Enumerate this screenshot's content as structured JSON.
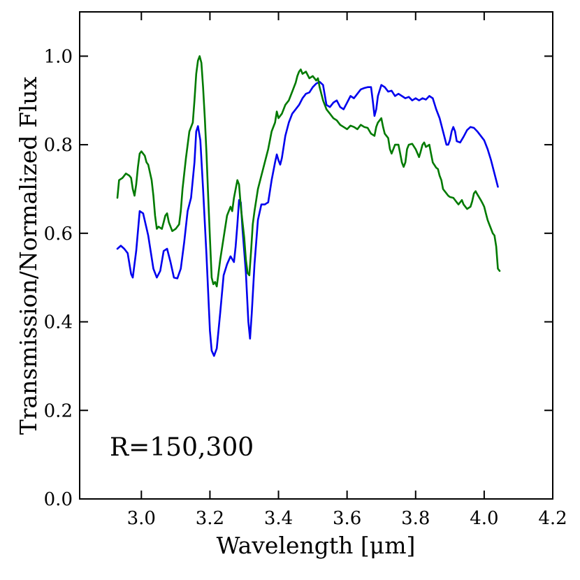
{
  "chart_data": {
    "type": "line",
    "xlabel": "Wavelength [μm]",
    "ylabel": "Transmission/Normalized Flux",
    "xlim": [
      2.82,
      4.2
    ],
    "ylim": [
      0.0,
      1.1
    ],
    "xticks": [
      3.0,
      3.2,
      3.4,
      3.6,
      3.8,
      4.0,
      4.2
    ],
    "xtick_labels": [
      "3.0",
      "3.2",
      "3.4",
      "3.6",
      "3.8",
      "4.0",
      "4.2"
    ],
    "yticks": [
      0.0,
      0.2,
      0.4,
      0.6,
      0.8,
      1.0
    ],
    "ytick_labels": [
      "0.0",
      "0.2",
      "0.4",
      "0.6",
      "0.8",
      "1.0"
    ],
    "annotation": "R=150,300",
    "series": [
      {
        "name": "blue",
        "color": "#0000ee",
        "points": [
          [
            2.93,
            0.565
          ],
          [
            2.94,
            0.572
          ],
          [
            2.95,
            0.565
          ],
          [
            2.96,
            0.555
          ],
          [
            2.97,
            0.508
          ],
          [
            2.975,
            0.5
          ],
          [
            2.985,
            0.56
          ],
          [
            2.995,
            0.65
          ],
          [
            3.005,
            0.645
          ],
          [
            3.02,
            0.595
          ],
          [
            3.035,
            0.52
          ],
          [
            3.045,
            0.5
          ],
          [
            3.055,
            0.515
          ],
          [
            3.065,
            0.56
          ],
          [
            3.075,
            0.565
          ],
          [
            3.085,
            0.535
          ],
          [
            3.095,
            0.5
          ],
          [
            3.105,
            0.498
          ],
          [
            3.115,
            0.52
          ],
          [
            3.125,
            0.58
          ],
          [
            3.135,
            0.65
          ],
          [
            3.145,
            0.68
          ],
          [
            3.155,
            0.76
          ],
          [
            3.16,
            0.83
          ],
          [
            3.165,
            0.842
          ],
          [
            3.172,
            0.81
          ],
          [
            3.18,
            0.7
          ],
          [
            3.19,
            0.55
          ],
          [
            3.2,
            0.38
          ],
          [
            3.205,
            0.335
          ],
          [
            3.212,
            0.323
          ],
          [
            3.22,
            0.34
          ],
          [
            3.23,
            0.42
          ],
          [
            3.24,
            0.505
          ],
          [
            3.25,
            0.53
          ],
          [
            3.26,
            0.548
          ],
          [
            3.27,
            0.535
          ],
          [
            3.275,
            0.57
          ],
          [
            3.28,
            0.62
          ],
          [
            3.285,
            0.675
          ],
          [
            3.29,
            0.67
          ],
          [
            3.295,
            0.61
          ],
          [
            3.305,
            0.51
          ],
          [
            3.312,
            0.4
          ],
          [
            3.317,
            0.362
          ],
          [
            3.322,
            0.42
          ],
          [
            3.33,
            0.53
          ],
          [
            3.34,
            0.63
          ],
          [
            3.35,
            0.665
          ],
          [
            3.36,
            0.665
          ],
          [
            3.37,
            0.67
          ],
          [
            3.38,
            0.72
          ],
          [
            3.39,
            0.76
          ],
          [
            3.395,
            0.778
          ],
          [
            3.4,
            0.765
          ],
          [
            3.405,
            0.755
          ],
          [
            3.41,
            0.77
          ],
          [
            3.42,
            0.82
          ],
          [
            3.43,
            0.85
          ],
          [
            3.44,
            0.87
          ],
          [
            3.45,
            0.88
          ],
          [
            3.46,
            0.89
          ],
          [
            3.47,
            0.905
          ],
          [
            3.48,
            0.915
          ],
          [
            3.49,
            0.918
          ],
          [
            3.5,
            0.93
          ],
          [
            3.51,
            0.938
          ],
          [
            3.52,
            0.942
          ],
          [
            3.53,
            0.935
          ],
          [
            3.54,
            0.89
          ],
          [
            3.55,
            0.885
          ],
          [
            3.56,
            0.895
          ],
          [
            3.57,
            0.9
          ],
          [
            3.58,
            0.885
          ],
          [
            3.59,
            0.88
          ],
          [
            3.6,
            0.895
          ],
          [
            3.61,
            0.91
          ],
          [
            3.62,
            0.905
          ],
          [
            3.63,
            0.915
          ],
          [
            3.64,
            0.925
          ],
          [
            3.65,
            0.928
          ],
          [
            3.66,
            0.93
          ],
          [
            3.67,
            0.93
          ],
          [
            3.675,
            0.9
          ],
          [
            3.68,
            0.865
          ],
          [
            3.685,
            0.88
          ],
          [
            3.69,
            0.91
          ],
          [
            3.7,
            0.935
          ],
          [
            3.71,
            0.93
          ],
          [
            3.72,
            0.92
          ],
          [
            3.73,
            0.922
          ],
          [
            3.74,
            0.91
          ],
          [
            3.75,
            0.915
          ],
          [
            3.76,
            0.91
          ],
          [
            3.77,
            0.905
          ],
          [
            3.78,
            0.908
          ],
          [
            3.79,
            0.9
          ],
          [
            3.8,
            0.905
          ],
          [
            3.81,
            0.9
          ],
          [
            3.82,
            0.905
          ],
          [
            3.83,
            0.902
          ],
          [
            3.84,
            0.91
          ],
          [
            3.85,
            0.905
          ],
          [
            3.86,
            0.88
          ],
          [
            3.87,
            0.86
          ],
          [
            3.88,
            0.83
          ],
          [
            3.89,
            0.8
          ],
          [
            3.895,
            0.8
          ],
          [
            3.9,
            0.81
          ],
          [
            3.905,
            0.83
          ],
          [
            3.91,
            0.84
          ],
          [
            3.915,
            0.83
          ],
          [
            3.92,
            0.808
          ],
          [
            3.93,
            0.805
          ],
          [
            3.94,
            0.818
          ],
          [
            3.95,
            0.833
          ],
          [
            3.96,
            0.84
          ],
          [
            3.97,
            0.838
          ],
          [
            3.98,
            0.83
          ],
          [
            3.99,
            0.82
          ],
          [
            4.0,
            0.81
          ],
          [
            4.01,
            0.79
          ],
          [
            4.02,
            0.765
          ],
          [
            4.03,
            0.735
          ],
          [
            4.04,
            0.705
          ]
        ]
      },
      {
        "name": "green",
        "color": "#007a00",
        "points": [
          [
            2.93,
            0.68
          ],
          [
            2.935,
            0.72
          ],
          [
            2.945,
            0.725
          ],
          [
            2.955,
            0.735
          ],
          [
            2.965,
            0.73
          ],
          [
            2.97,
            0.725
          ],
          [
            2.975,
            0.7
          ],
          [
            2.98,
            0.685
          ],
          [
            2.985,
            0.71
          ],
          [
            2.99,
            0.75
          ],
          [
            2.995,
            0.78
          ],
          [
            3.0,
            0.785
          ],
          [
            3.01,
            0.775
          ],
          [
            3.015,
            0.76
          ],
          [
            3.02,
            0.755
          ],
          [
            3.03,
            0.72
          ],
          [
            3.035,
            0.685
          ],
          [
            3.04,
            0.64
          ],
          [
            3.045,
            0.61
          ],
          [
            3.05,
            0.615
          ],
          [
            3.06,
            0.61
          ],
          [
            3.065,
            0.625
          ],
          [
            3.07,
            0.64
          ],
          [
            3.075,
            0.645
          ],
          [
            3.08,
            0.625
          ],
          [
            3.09,
            0.605
          ],
          [
            3.1,
            0.61
          ],
          [
            3.11,
            0.62
          ],
          [
            3.115,
            0.65
          ],
          [
            3.12,
            0.7
          ],
          [
            3.13,
            0.77
          ],
          [
            3.14,
            0.83
          ],
          [
            3.15,
            0.85
          ],
          [
            3.155,
            0.9
          ],
          [
            3.16,
            0.96
          ],
          [
            3.165,
            0.99
          ],
          [
            3.17,
            1.0
          ],
          [
            3.175,
            0.985
          ],
          [
            3.18,
            0.93
          ],
          [
            3.185,
            0.86
          ],
          [
            3.19,
            0.78
          ],
          [
            3.195,
            0.68
          ],
          [
            3.2,
            0.59
          ],
          [
            3.205,
            0.5
          ],
          [
            3.21,
            0.485
          ],
          [
            3.215,
            0.49
          ],
          [
            3.22,
            0.48
          ],
          [
            3.225,
            0.51
          ],
          [
            3.23,
            0.54
          ],
          [
            3.24,
            0.59
          ],
          [
            3.25,
            0.64
          ],
          [
            3.26,
            0.66
          ],
          [
            3.265,
            0.65
          ],
          [
            3.27,
            0.68
          ],
          [
            3.28,
            0.72
          ],
          [
            3.285,
            0.71
          ],
          [
            3.29,
            0.66
          ],
          [
            3.3,
            0.59
          ],
          [
            3.305,
            0.54
          ],
          [
            3.31,
            0.51
          ],
          [
            3.315,
            0.505
          ],
          [
            3.32,
            0.56
          ],
          [
            3.325,
            0.62
          ],
          [
            3.33,
            0.65
          ],
          [
            3.34,
            0.7
          ],
          [
            3.35,
            0.73
          ],
          [
            3.36,
            0.76
          ],
          [
            3.37,
            0.79
          ],
          [
            3.38,
            0.83
          ],
          [
            3.39,
            0.85
          ],
          [
            3.395,
            0.875
          ],
          [
            3.4,
            0.86
          ],
          [
            3.41,
            0.87
          ],
          [
            3.42,
            0.89
          ],
          [
            3.43,
            0.9
          ],
          [
            3.44,
            0.92
          ],
          [
            3.45,
            0.94
          ],
          [
            3.455,
            0.955
          ],
          [
            3.46,
            0.965
          ],
          [
            3.465,
            0.97
          ],
          [
            3.47,
            0.96
          ],
          [
            3.48,
            0.965
          ],
          [
            3.49,
            0.95
          ],
          [
            3.5,
            0.955
          ],
          [
            3.51,
            0.945
          ],
          [
            3.515,
            0.95
          ],
          [
            3.52,
            0.93
          ],
          [
            3.53,
            0.9
          ],
          [
            3.54,
            0.88
          ],
          [
            3.55,
            0.87
          ],
          [
            3.56,
            0.86
          ],
          [
            3.57,
            0.855
          ],
          [
            3.58,
            0.845
          ],
          [
            3.59,
            0.84
          ],
          [
            3.6,
            0.835
          ],
          [
            3.61,
            0.843
          ],
          [
            3.62,
            0.84
          ],
          [
            3.63,
            0.835
          ],
          [
            3.64,
            0.845
          ],
          [
            3.65,
            0.84
          ],
          [
            3.66,
            0.838
          ],
          [
            3.67,
            0.825
          ],
          [
            3.68,
            0.82
          ],
          [
            3.685,
            0.84
          ],
          [
            3.69,
            0.85
          ],
          [
            3.7,
            0.86
          ],
          [
            3.705,
            0.84
          ],
          [
            3.71,
            0.825
          ],
          [
            3.72,
            0.815
          ],
          [
            3.725,
            0.79
          ],
          [
            3.73,
            0.78
          ],
          [
            3.74,
            0.8
          ],
          [
            3.75,
            0.8
          ],
          [
            3.755,
            0.78
          ],
          [
            3.76,
            0.76
          ],
          [
            3.765,
            0.75
          ],
          [
            3.77,
            0.76
          ],
          [
            3.775,
            0.79
          ],
          [
            3.78,
            0.8
          ],
          [
            3.79,
            0.802
          ],
          [
            3.8,
            0.79
          ],
          [
            3.81,
            0.772
          ],
          [
            3.815,
            0.785
          ],
          [
            3.82,
            0.8
          ],
          [
            3.825,
            0.805
          ],
          [
            3.83,
            0.795
          ],
          [
            3.84,
            0.8
          ],
          [
            3.845,
            0.78
          ],
          [
            3.85,
            0.76
          ],
          [
            3.86,
            0.748
          ],
          [
            3.865,
            0.745
          ],
          [
            3.87,
            0.73
          ],
          [
            3.875,
            0.72
          ],
          [
            3.88,
            0.7
          ],
          [
            3.89,
            0.69
          ],
          [
            3.895,
            0.685
          ],
          [
            3.9,
            0.682
          ],
          [
            3.91,
            0.68
          ],
          [
            3.92,
            0.67
          ],
          [
            3.925,
            0.665
          ],
          [
            3.93,
            0.67
          ],
          [
            3.935,
            0.675
          ],
          [
            3.94,
            0.665
          ],
          [
            3.95,
            0.655
          ],
          [
            3.96,
            0.66
          ],
          [
            3.965,
            0.672
          ],
          [
            3.97,
            0.69
          ],
          [
            3.975,
            0.695
          ],
          [
            3.98,
            0.688
          ],
          [
            3.99,
            0.675
          ],
          [
            3.995,
            0.668
          ],
          [
            4.0,
            0.66
          ],
          [
            4.005,
            0.645
          ],
          [
            4.01,
            0.63
          ],
          [
            4.015,
            0.62
          ],
          [
            4.02,
            0.61
          ],
          [
            4.025,
            0.6
          ],
          [
            4.03,
            0.595
          ],
          [
            4.035,
            0.57
          ],
          [
            4.04,
            0.52
          ],
          [
            4.045,
            0.515
          ]
        ]
      }
    ]
  }
}
